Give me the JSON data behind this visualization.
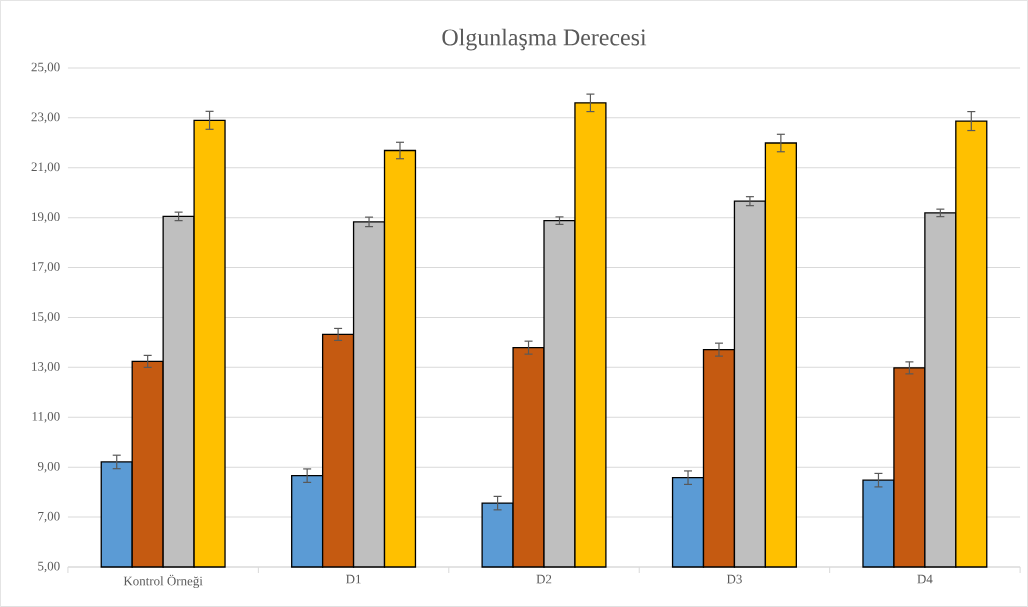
{
  "chart_data": {
    "type": "bar",
    "title": "Olgunlaşma Derecesi",
    "categories": [
      "Kontrol Örneği",
      "D1",
      "D2",
      "D3",
      "D4"
    ],
    "series": [
      {
        "color": "#5b9bd5",
        "values": [
          9.21,
          8.66,
          7.56,
          8.58,
          8.48
        ],
        "errors": [
          0.27,
          0.27,
          0.27,
          0.27,
          0.27
        ]
      },
      {
        "color": "#c55a11",
        "values": [
          13.24,
          14.32,
          13.79,
          13.71,
          12.98
        ],
        "errors": [
          0.24,
          0.24,
          0.26,
          0.26,
          0.24
        ]
      },
      {
        "color": "#bfbfbf",
        "values": [
          19.05,
          18.83,
          18.88,
          19.66,
          19.19
        ],
        "errors": [
          0.17,
          0.19,
          0.15,
          0.18,
          0.15
        ]
      },
      {
        "color": "#ffc000",
        "values": [
          22.9,
          21.69,
          23.6,
          21.99,
          22.87
        ],
        "errors": [
          0.36,
          0.33,
          0.35,
          0.35,
          0.38
        ]
      }
    ],
    "ylim": [
      5,
      25
    ],
    "yticks": [
      {
        "value": 5,
        "label": "5,00"
      },
      {
        "value": 7,
        "label": "7,00"
      },
      {
        "value": 9,
        "label": "9,00"
      },
      {
        "value": 11,
        "label": "11,00"
      },
      {
        "value": 13,
        "label": "13,00"
      },
      {
        "value": 15,
        "label": "15,00"
      },
      {
        "value": 17,
        "label": "17,00"
      },
      {
        "value": 19,
        "label": "19,00"
      },
      {
        "value": 21,
        "label": "21,00"
      },
      {
        "value": 23,
        "label": "23,00"
      },
      {
        "value": 25,
        "label": "25,00"
      }
    ],
    "grid": "y"
  }
}
